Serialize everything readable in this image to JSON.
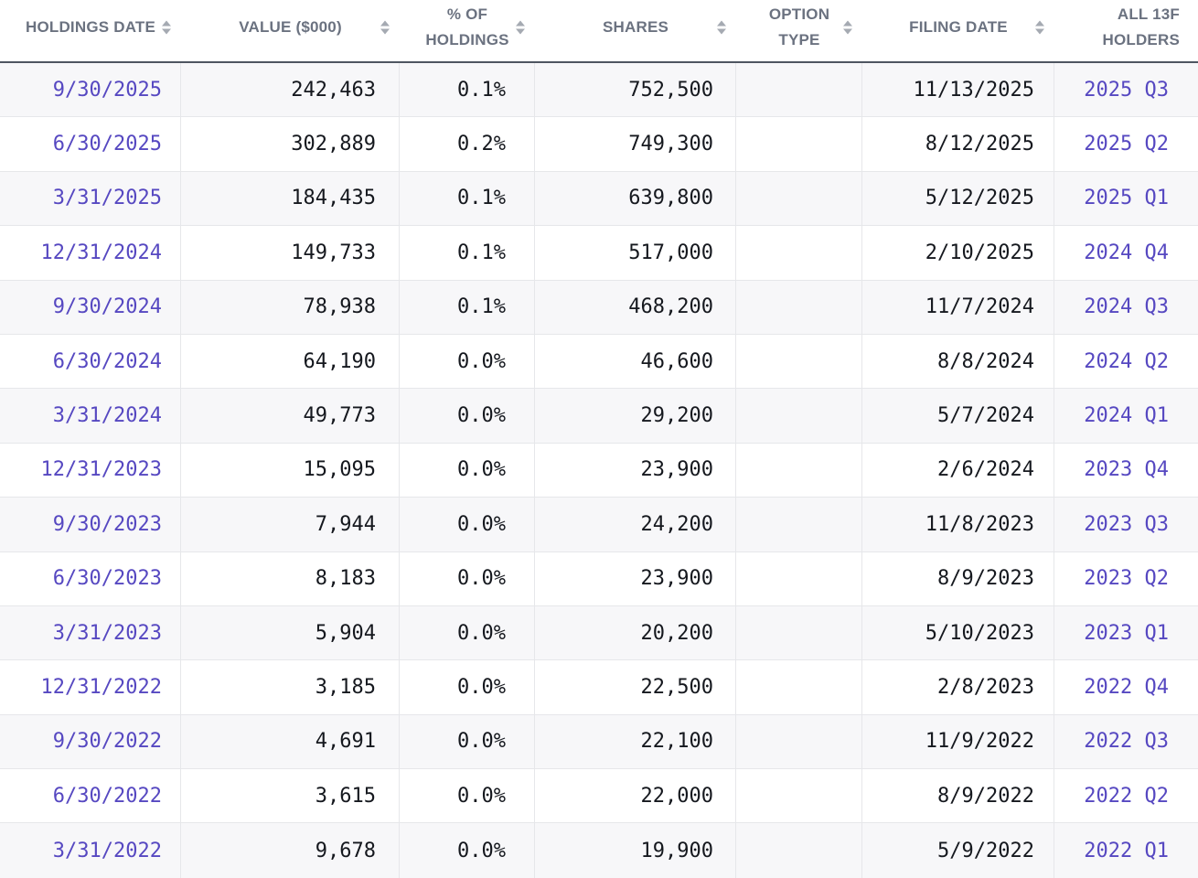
{
  "table": {
    "columns": [
      {
        "label": "HOLDINGS DATE",
        "sortable": true
      },
      {
        "label": "VALUE ($000)",
        "sortable": true
      },
      {
        "label": "% OF HOLDINGS",
        "sortable": true
      },
      {
        "label": "SHARES",
        "sortable": true
      },
      {
        "label": "OPTION TYPE",
        "sortable": true
      },
      {
        "label": "FILING DATE",
        "sortable": true
      },
      {
        "label": "ALL 13F HOLDERS",
        "sortable": false
      }
    ],
    "rows": [
      [
        "9/30/2025",
        "242,463",
        "0.1%",
        "752,500",
        "",
        "11/13/2025",
        "2025 Q3"
      ],
      [
        "6/30/2025",
        "302,889",
        "0.2%",
        "749,300",
        "",
        "8/12/2025",
        "2025 Q2"
      ],
      [
        "3/31/2025",
        "184,435",
        "0.1%",
        "639,800",
        "",
        "5/12/2025",
        "2025 Q1"
      ],
      [
        "12/31/2024",
        "149,733",
        "0.1%",
        "517,000",
        "",
        "2/10/2025",
        "2024 Q4"
      ],
      [
        "9/30/2024",
        "78,938",
        "0.1%",
        "468,200",
        "",
        "11/7/2024",
        "2024 Q3"
      ],
      [
        "6/30/2024",
        "64,190",
        "0.0%",
        "46,600",
        "",
        "8/8/2024",
        "2024 Q2"
      ],
      [
        "3/31/2024",
        "49,773",
        "0.0%",
        "29,200",
        "",
        "5/7/2024",
        "2024 Q1"
      ],
      [
        "12/31/2023",
        "15,095",
        "0.0%",
        "23,900",
        "",
        "2/6/2024",
        "2023 Q4"
      ],
      [
        "9/30/2023",
        "7,944",
        "0.0%",
        "24,200",
        "",
        "11/8/2023",
        "2023 Q3"
      ],
      [
        "6/30/2023",
        "8,183",
        "0.0%",
        "23,900",
        "",
        "8/9/2023",
        "2023 Q2"
      ],
      [
        "3/31/2023",
        "5,904",
        "0.0%",
        "20,200",
        "",
        "5/10/2023",
        "2023 Q1"
      ],
      [
        "12/31/2022",
        "3,185",
        "0.0%",
        "22,500",
        "",
        "2/8/2023",
        "2022 Q4"
      ],
      [
        "9/30/2022",
        "4,691",
        "0.0%",
        "22,100",
        "",
        "11/9/2022",
        "2022 Q3"
      ],
      [
        "6/30/2022",
        "3,615",
        "0.0%",
        "22,000",
        "",
        "8/9/2022",
        "2022 Q2"
      ],
      [
        "3/31/2022",
        "9,678",
        "0.0%",
        "19,900",
        "",
        "5/9/2022",
        "2022 Q1"
      ]
    ]
  },
  "colors": {
    "link_purple": "#5648c1",
    "header_text": "#6b7280",
    "row_stripe": "#f7f7f9",
    "header_border": "#4e5661",
    "cell_border": "#e6e7ea"
  }
}
